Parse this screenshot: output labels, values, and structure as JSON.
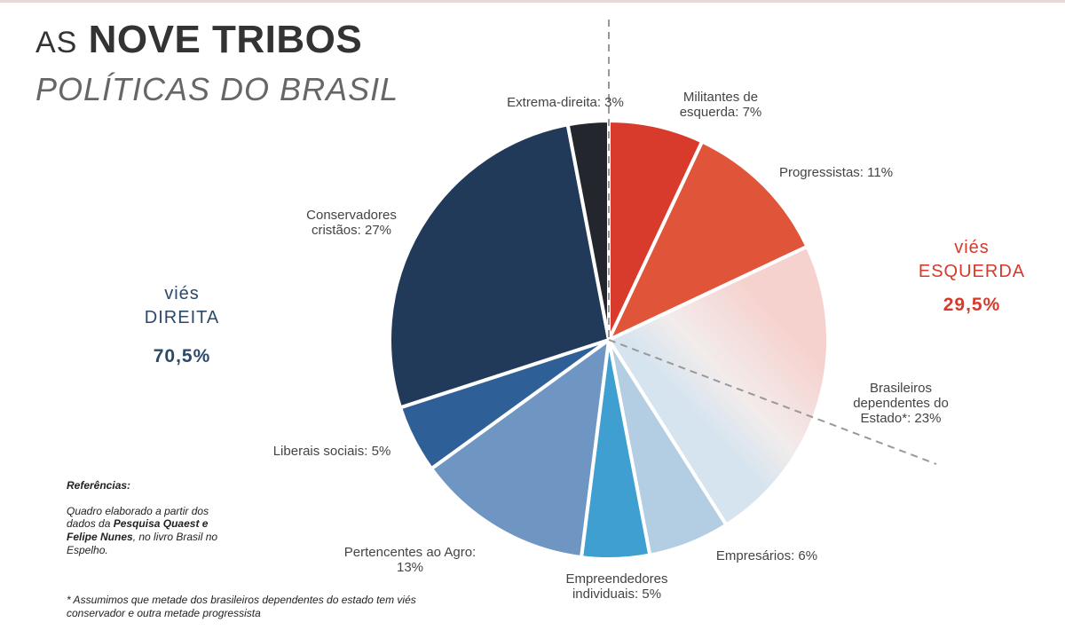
{
  "header": {
    "title_prefix": "AS",
    "title_main": "NOVE TRIBOS",
    "subtitle": "POLÍTICAS DO BRASIL"
  },
  "bias": {
    "right_word": "viés",
    "right_label": "DIREITA",
    "right_pct": "70,5%",
    "left_word": "viés",
    "left_label": "ESQUERDA",
    "left_pct": "29,5%"
  },
  "references": {
    "heading": "Referências:",
    "text1": "Quadro elaborado a partir dos dados da",
    "bold": "Pesquisa Quaest e Felipe Nunes",
    "text2": ", no livro Brasil no Espelho."
  },
  "footnote": "* Assumimos que metade dos brasileiros dependentes do estado tem viés conservador e outra metade progressista",
  "colors": {
    "militantes": "#d83a2c",
    "progressistas": "#e0553a",
    "dependentes_left": "#f6d2cf",
    "dependentes_right": "#d6e4ef",
    "empresarios": "#b3cde3",
    "empreendedores": "#3e9fd0",
    "agro": "#6f95c3",
    "liberais": "#2f5f97",
    "conservadores": "#223a5a",
    "extrema": "#23262c",
    "right_accent": "#2b4a6a",
    "left_accent": "#d63a2a"
  },
  "chart_data": {
    "type": "pie",
    "title": "AS NOVE TRIBOS POLÍTICAS DO BRASIL",
    "slices": [
      {
        "lines": [
          "Militantes de",
          "esquerda: 7%"
        ],
        "value": 7,
        "color_key": "militantes"
      },
      {
        "lines": [
          "Progressistas: 11%"
        ],
        "value": 11,
        "color_key": "progressistas"
      },
      {
        "lines": [
          "Brasileiros",
          "dependentes do",
          "Estado*: 23%"
        ],
        "value": 23,
        "color_key": "dependentes"
      },
      {
        "lines": [
          "Empresários: 6%"
        ],
        "value": 6,
        "color_key": "empresarios"
      },
      {
        "lines": [
          "Empreendedores",
          "individuais: 5%"
        ],
        "value": 5,
        "color_key": "empreendedores"
      },
      {
        "lines": [
          "Pertencentes ao Agro:",
          "13%"
        ],
        "value": 13,
        "color_key": "agro"
      },
      {
        "lines": [
          "Liberais sociais: 5%"
        ],
        "value": 5,
        "color_key": "liberais"
      },
      {
        "lines": [
          "Conservadores",
          "cristãos: 27%"
        ],
        "value": 27,
        "color_key": "conservadores"
      },
      {
        "lines": [
          "Extrema-direita: 3%"
        ],
        "value": 3,
        "color_key": "extrema"
      }
    ]
  }
}
